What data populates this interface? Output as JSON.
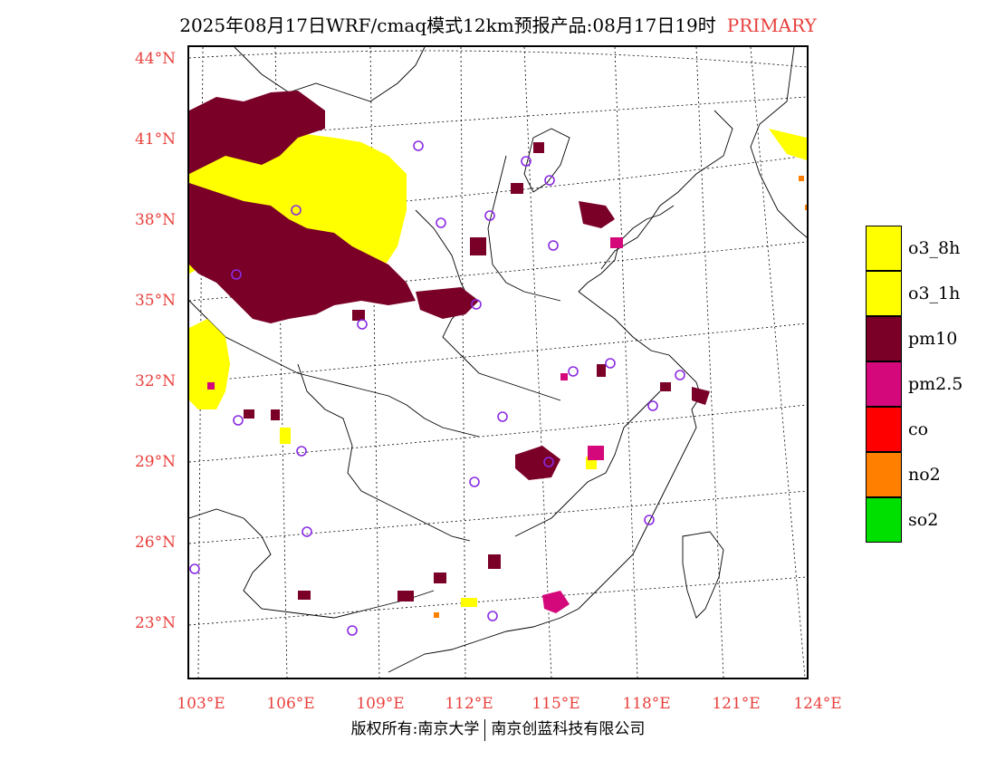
{
  "title": {
    "main": "2025年08月17日WRF/cmaq模式12km预报产品:08月17日19时",
    "tag": "PRIMARY"
  },
  "map": {
    "lat_ticks": [
      "44°N",
      "41°N",
      "38°N",
      "35°N",
      "32°N",
      "29°N",
      "26°N",
      "23°N"
    ],
    "lon_ticks": [
      "103°E",
      "106°E",
      "109°E",
      "112°E",
      "115°E",
      "118°E",
      "121°E",
      "124°E"
    ]
  },
  "legend": [
    {
      "label": "o3_8h",
      "color": "#ffff00"
    },
    {
      "label": "o3_1h",
      "color": "#ffff00"
    },
    {
      "label": "pm10",
      "color": "#7a0028"
    },
    {
      "label": "pm2.5",
      "color": "#d4087a"
    },
    {
      "label": "co",
      "color": "#ff0000"
    },
    {
      "label": "no2",
      "color": "#ff7f00"
    },
    {
      "label": "so2",
      "color": "#00e000"
    }
  ],
  "colors": {
    "pm10": "#7a0028",
    "o3": "#ffff00",
    "pm25": "#d4087a",
    "no2": "#ff7f00",
    "axis_label": "#e8403c",
    "city_marker": "#8a2be2"
  },
  "footer": {
    "left": "版权所有:南京大学",
    "right": "南京创蓝科技有限公司"
  }
}
